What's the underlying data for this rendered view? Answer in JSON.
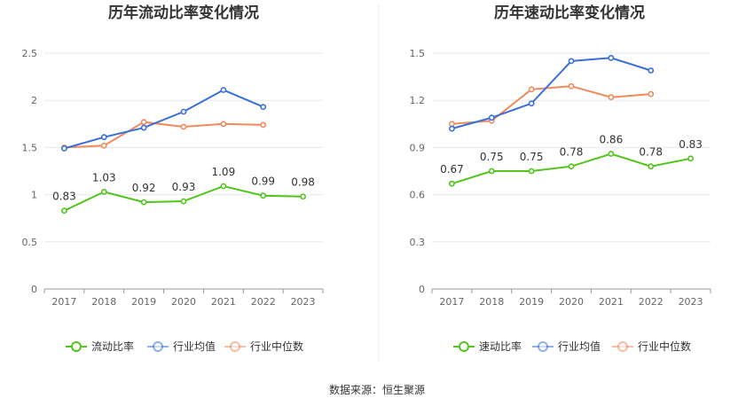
{
  "source": "数据来源：恒生聚源",
  "colors": {
    "primary": "#52c41a",
    "average": "#3a6fdb",
    "median": "#f08a5d",
    "grid": "#e6e8f0",
    "axis": "#999999"
  },
  "chart_data": [
    {
      "type": "line",
      "title": "历年流动比率变化情况",
      "categories": [
        "2017",
        "2018",
        "2019",
        "2020",
        "2021",
        "2022",
        "2023"
      ],
      "ylim": [
        0,
        2.5
      ],
      "yticks": [
        "0",
        "0.5",
        "1",
        "1.5",
        "2",
        "2.5"
      ],
      "series": [
        {
          "name": "流动比率",
          "role": "primary",
          "values": [
            0.83,
            1.03,
            0.92,
            0.93,
            1.09,
            0.99,
            0.98
          ],
          "labels": [
            "0.83",
            "1.03",
            "0.92",
            "0.93",
            "1.09",
            "0.99",
            "0.98"
          ]
        },
        {
          "name": "行业均值",
          "role": "average",
          "values": [
            1.49,
            1.61,
            1.71,
            1.88,
            2.11,
            1.93,
            null
          ]
        },
        {
          "name": "行业中位数",
          "role": "median",
          "values": [
            1.5,
            1.52,
            1.77,
            1.72,
            1.75,
            1.74,
            null
          ]
        }
      ]
    },
    {
      "type": "line",
      "title": "历年速动比率变化情况",
      "categories": [
        "2017",
        "2018",
        "2019",
        "2020",
        "2021",
        "2022",
        "2023"
      ],
      "ylim": [
        0,
        1.5
      ],
      "yticks": [
        "0",
        "0.3",
        "0.6",
        "0.9",
        "1.2",
        "1.5"
      ],
      "series": [
        {
          "name": "速动比率",
          "role": "primary",
          "values": [
            0.67,
            0.75,
            0.75,
            0.78,
            0.86,
            0.78,
            0.83
          ],
          "labels": [
            "0.67",
            "0.75",
            "0.75",
            "0.78",
            "0.86",
            "0.78",
            "0.83"
          ]
        },
        {
          "name": "行业均值",
          "role": "average",
          "values": [
            1.02,
            1.09,
            1.18,
            1.45,
            1.47,
            1.39,
            null
          ]
        },
        {
          "name": "行业中位数",
          "role": "median",
          "values": [
            1.05,
            1.07,
            1.27,
            1.29,
            1.22,
            1.24,
            null
          ]
        }
      ]
    }
  ]
}
